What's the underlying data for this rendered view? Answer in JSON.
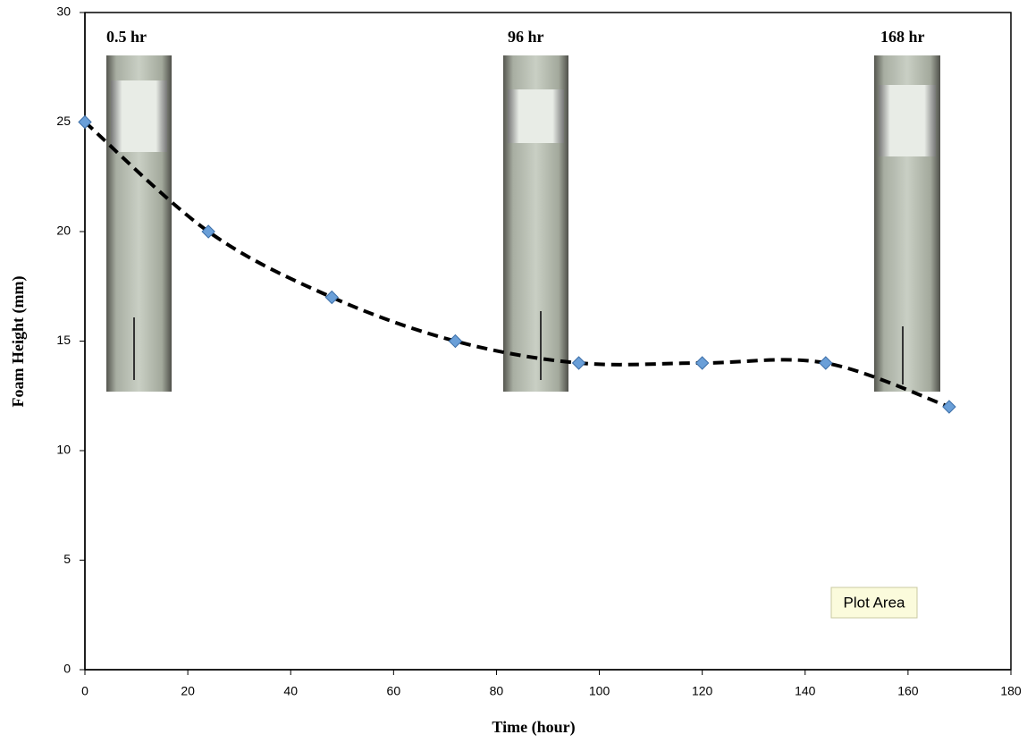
{
  "chart_data": {
    "type": "line",
    "x_label": "Time (hour)",
    "y_label": "Foam Height  (mm)",
    "x": [
      0,
      24,
      48,
      72,
      96,
      120,
      144,
      168
    ],
    "series": [
      {
        "color": "#6a9fd8",
        "values": [
          25,
          20,
          17,
          15,
          14,
          14,
          14,
          12
        ]
      }
    ],
    "xlim": [
      0,
      180
    ],
    "xticks": [
      0,
      20,
      40,
      60,
      80,
      100,
      120,
      140,
      160,
      180
    ],
    "ylim": [
      0,
      30
    ],
    "yticks": [
      0,
      5,
      10,
      15,
      20,
      25,
      30
    ],
    "line_style": "dashed",
    "smooth": true,
    "annotations": [
      "0.5 hr",
      "96 hr",
      "168 hr",
      "Plot Area"
    ]
  }
}
